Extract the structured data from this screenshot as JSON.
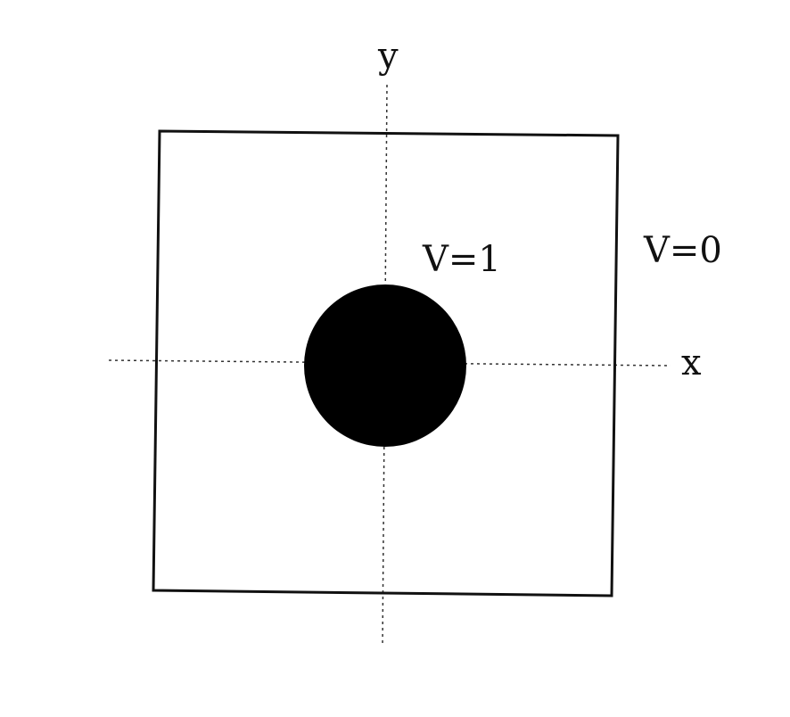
{
  "axes": {
    "x_label": "x",
    "y_label": "y"
  },
  "regions": {
    "inner_potential": "V=1",
    "outer_potential": "V=0"
  },
  "colors": {
    "ink": "#111111",
    "conductor_fill": "#000000",
    "background": "#ffffff"
  }
}
